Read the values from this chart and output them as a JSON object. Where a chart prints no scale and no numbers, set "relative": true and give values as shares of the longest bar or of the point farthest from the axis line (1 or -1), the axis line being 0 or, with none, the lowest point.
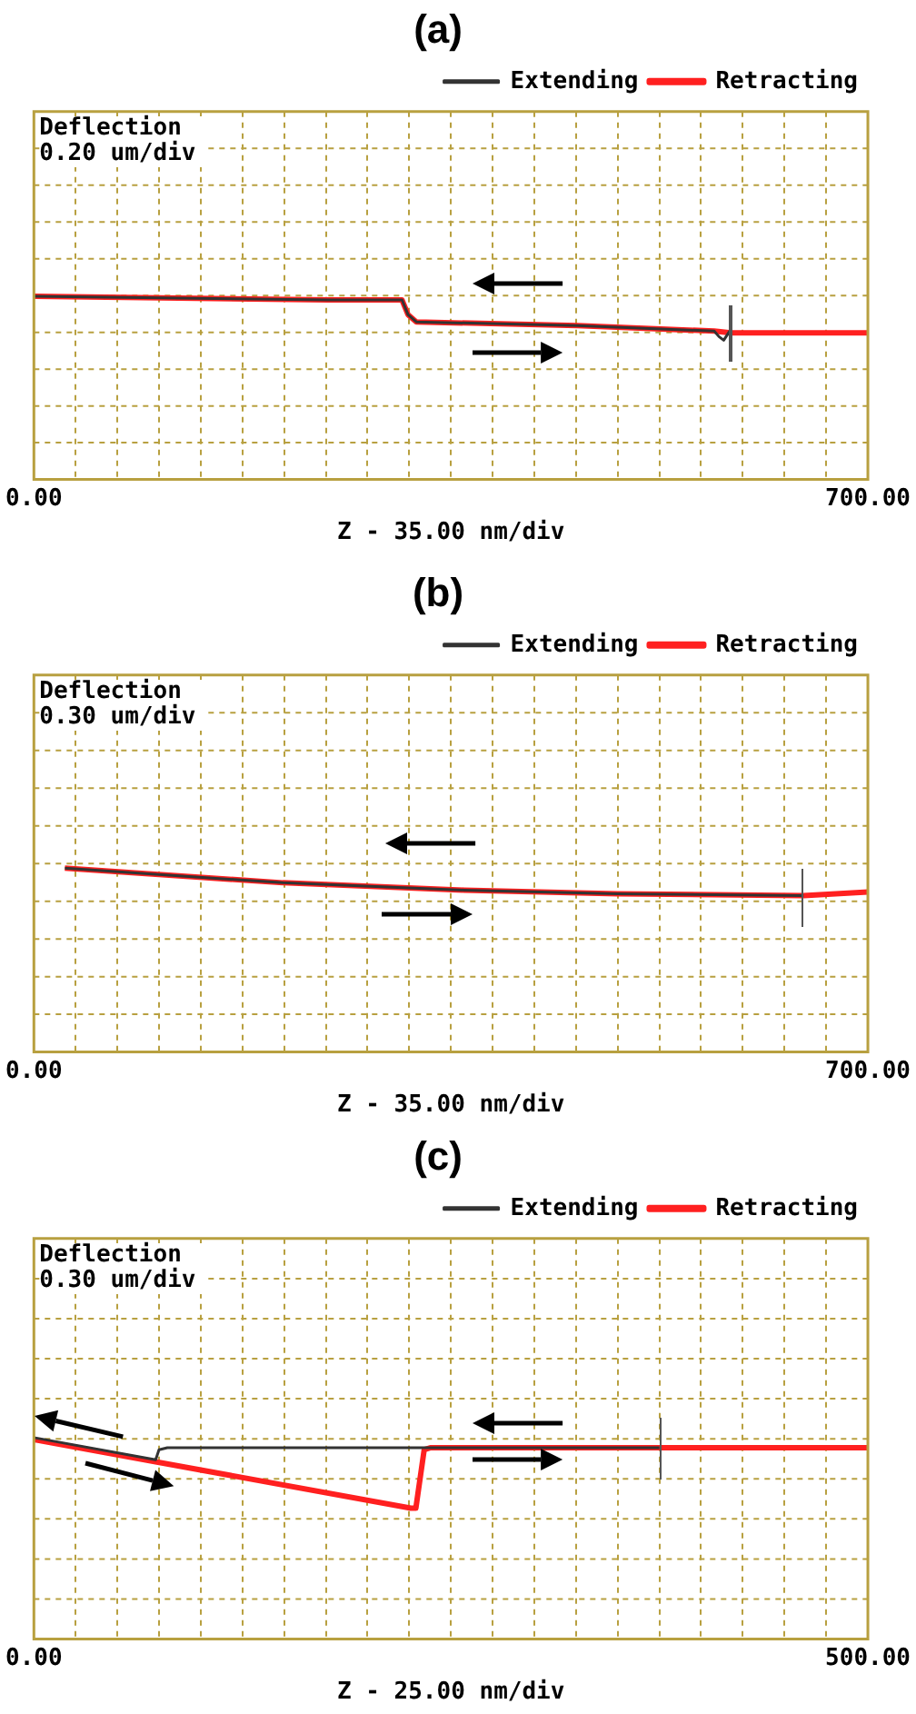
{
  "chart_data": [
    {
      "type": "line",
      "title": "(a)",
      "ylabel": "Deflection 0.20 um/div",
      "xlabel": "Z - 35.00 nm/div",
      "relative": true,
      "grid": true,
      "legend": "top right",
      "marker": "none",
      "xlim": [
        0,
        700
      ],
      "xticks": [
        {
          "value": 0,
          "label": "0.00"
        },
        {
          "value": 35,
          "label": null
        },
        {
          "value": 70,
          "label": null
        },
        {
          "value": 105,
          "label": null
        },
        {
          "value": 140,
          "label": null
        },
        {
          "value": 175,
          "label": null
        },
        {
          "value": 210,
          "label": null
        },
        {
          "value": 245,
          "label": null
        },
        {
          "value": 280,
          "label": null
        },
        {
          "value": 315,
          "label": null
        },
        {
          "value": 350,
          "label": null
        },
        {
          "value": 385,
          "label": null
        },
        {
          "value": 420,
          "label": null
        },
        {
          "value": 455,
          "label": null
        },
        {
          "value": 490,
          "label": null
        },
        {
          "value": 525,
          "label": null
        },
        {
          "value": 560,
          "label": null
        },
        {
          "value": 595,
          "label": null
        },
        {
          "value": 630,
          "label": null
        },
        {
          "value": 665,
          "label": null
        },
        {
          "value": 700,
          "label": "700.00"
        }
      ],
      "series": [
        {
          "name": "Extending",
          "color": "#333333",
          "x": [
            0,
            247,
            309,
            314,
            321,
            456,
            571,
            575,
            579,
            584
          ],
          "values": [
            1,
            0.98,
            0.98,
            0.9,
            0.86,
            0.84,
            0.81,
            0.78,
            0.76,
            0.81
          ]
        },
        {
          "name": "Retracting",
          "color": "#ff2020",
          "x": [
            0,
            247,
            309,
            314,
            321,
            456,
            571,
            585,
            700
          ],
          "values": [
            1,
            0.98,
            0.98,
            0.9,
            0.86,
            0.84,
            0.81,
            0.8,
            0.8
          ]
        }
      ]
    },
    {
      "type": "line",
      "title": "(b)",
      "ylabel": "Deflection 0.30 um/div",
      "xlabel": "Z - 35.00 nm/div",
      "relative": true,
      "grid": true,
      "legend": "top right",
      "marker": "none",
      "xlim": [
        0,
        700
      ],
      "xticks": [
        {
          "value": 0,
          "label": "0.00"
        },
        {
          "value": 35,
          "label": null
        },
        {
          "value": 70,
          "label": null
        },
        {
          "value": 105,
          "label": null
        },
        {
          "value": 140,
          "label": null
        },
        {
          "value": 175,
          "label": null
        },
        {
          "value": 210,
          "label": null
        },
        {
          "value": 245,
          "label": null
        },
        {
          "value": 280,
          "label": null
        },
        {
          "value": 315,
          "label": null
        },
        {
          "value": 350,
          "label": null
        },
        {
          "value": 385,
          "label": null
        },
        {
          "value": 420,
          "label": null
        },
        {
          "value": 455,
          "label": null
        },
        {
          "value": 490,
          "label": null
        },
        {
          "value": 525,
          "label": null
        },
        {
          "value": 560,
          "label": null
        },
        {
          "value": 595,
          "label": null
        },
        {
          "value": 630,
          "label": null
        },
        {
          "value": 665,
          "label": null
        },
        {
          "value": 700,
          "label": "700.00"
        }
      ],
      "series": [
        {
          "name": "Extending",
          "color": "#333333",
          "x": [
            26,
            209,
            361,
            490,
            646
          ],
          "values": [
            1,
            0.92,
            0.88,
            0.86,
            0.85
          ]
        },
        {
          "name": "Retracting",
          "color": "#ff2020",
          "x": [
            26,
            209,
            361,
            490,
            646,
            700
          ],
          "values": [
            1,
            0.92,
            0.88,
            0.86,
            0.85,
            0.87
          ]
        }
      ]
    },
    {
      "type": "line",
      "title": "(c)",
      "ylabel": "Deflection 0.30 um/div",
      "xlabel": "Z - 25.00 nm/div",
      "relative": true,
      "grid": true,
      "legend": "top right",
      "marker": "none",
      "xlim": [
        0,
        500
      ],
      "xticks": [
        {
          "value": 0,
          "label": "0.00"
        },
        {
          "value": 25,
          "label": null
        },
        {
          "value": 50,
          "label": null
        },
        {
          "value": 75,
          "label": null
        },
        {
          "value": 100,
          "label": null
        },
        {
          "value": 125,
          "label": null
        },
        {
          "value": 150,
          "label": null
        },
        {
          "value": 175,
          "label": null
        },
        {
          "value": 200,
          "label": null
        },
        {
          "value": 225,
          "label": null
        },
        {
          "value": 250,
          "label": null
        },
        {
          "value": 275,
          "label": null
        },
        {
          "value": 300,
          "label": null
        },
        {
          "value": 325,
          "label": null
        },
        {
          "value": 350,
          "label": null
        },
        {
          "value": 375,
          "label": null
        },
        {
          "value": 400,
          "label": null
        },
        {
          "value": 425,
          "label": null
        },
        {
          "value": 450,
          "label": null
        },
        {
          "value": 475,
          "label": null
        },
        {
          "value": 500,
          "label": "500.00"
        }
      ],
      "series": [
        {
          "name": "Extending",
          "color": "#333333",
          "x": [
            0,
            73,
            75,
            80,
            375
          ],
          "values": [
            1,
            0.89,
            0.94,
            0.95,
            0.95
          ]
        },
        {
          "name": "Retracting",
          "color": "#ff2020",
          "x": [
            0,
            73,
            226,
            229,
            234,
            238,
            500
          ],
          "values": [
            0.99,
            0.88,
            0.65,
            0.65,
            0.94,
            0.95,
            0.95
          ]
        }
      ]
    }
  ]
}
